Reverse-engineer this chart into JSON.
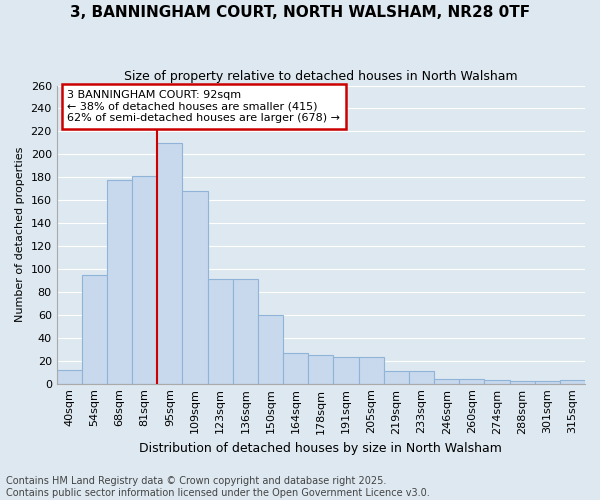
{
  "title1": "3, BANNINGHAM COURT, NORTH WALSHAM, NR28 0TF",
  "title2": "Size of property relative to detached houses in North Walsham",
  "xlabel": "Distribution of detached houses by size in North Walsham",
  "ylabel": "Number of detached properties",
  "categories": [
    "40sqm",
    "54sqm",
    "68sqm",
    "81sqm",
    "95sqm",
    "109sqm",
    "123sqm",
    "136sqm",
    "150sqm",
    "164sqm",
    "178sqm",
    "191sqm",
    "205sqm",
    "219sqm",
    "233sqm",
    "246sqm",
    "260sqm",
    "274sqm",
    "288sqm",
    "301sqm",
    "315sqm"
  ],
  "values": [
    12,
    95,
    178,
    181,
    210,
    168,
    91,
    91,
    60,
    27,
    25,
    23,
    23,
    11,
    11,
    4,
    4,
    3,
    2,
    2,
    3
  ],
  "bar_color": "#c8d9ee",
  "bar_edge_color": "#8fb4d8",
  "vline_x_index": 4,
  "vline_color": "#cc0000",
  "annotation_line1": "3 BANNINGHAM COURT: 92sqm",
  "annotation_line2": "← 38% of detached houses are smaller (415)",
  "annotation_line3": "62% of semi-detached houses are larger (678) →",
  "annotation_box_color": "#ffffff",
  "annotation_box_edge_color": "#cc0000",
  "background_color": "#dde8f0",
  "grid_color": "#ffffff",
  "footnote1": "Contains HM Land Registry data © Crown copyright and database right 2025.",
  "footnote2": "Contains public sector information licensed under the Open Government Licence v3.0.",
  "ylim": [
    0,
    260
  ],
  "yticks": [
    0,
    20,
    40,
    60,
    80,
    100,
    120,
    140,
    160,
    180,
    200,
    220,
    240,
    260
  ],
  "title1_fontsize": 11,
  "title2_fontsize": 9,
  "xlabel_fontsize": 9,
  "ylabel_fontsize": 8,
  "tick_fontsize": 8,
  "footnote_fontsize": 7
}
